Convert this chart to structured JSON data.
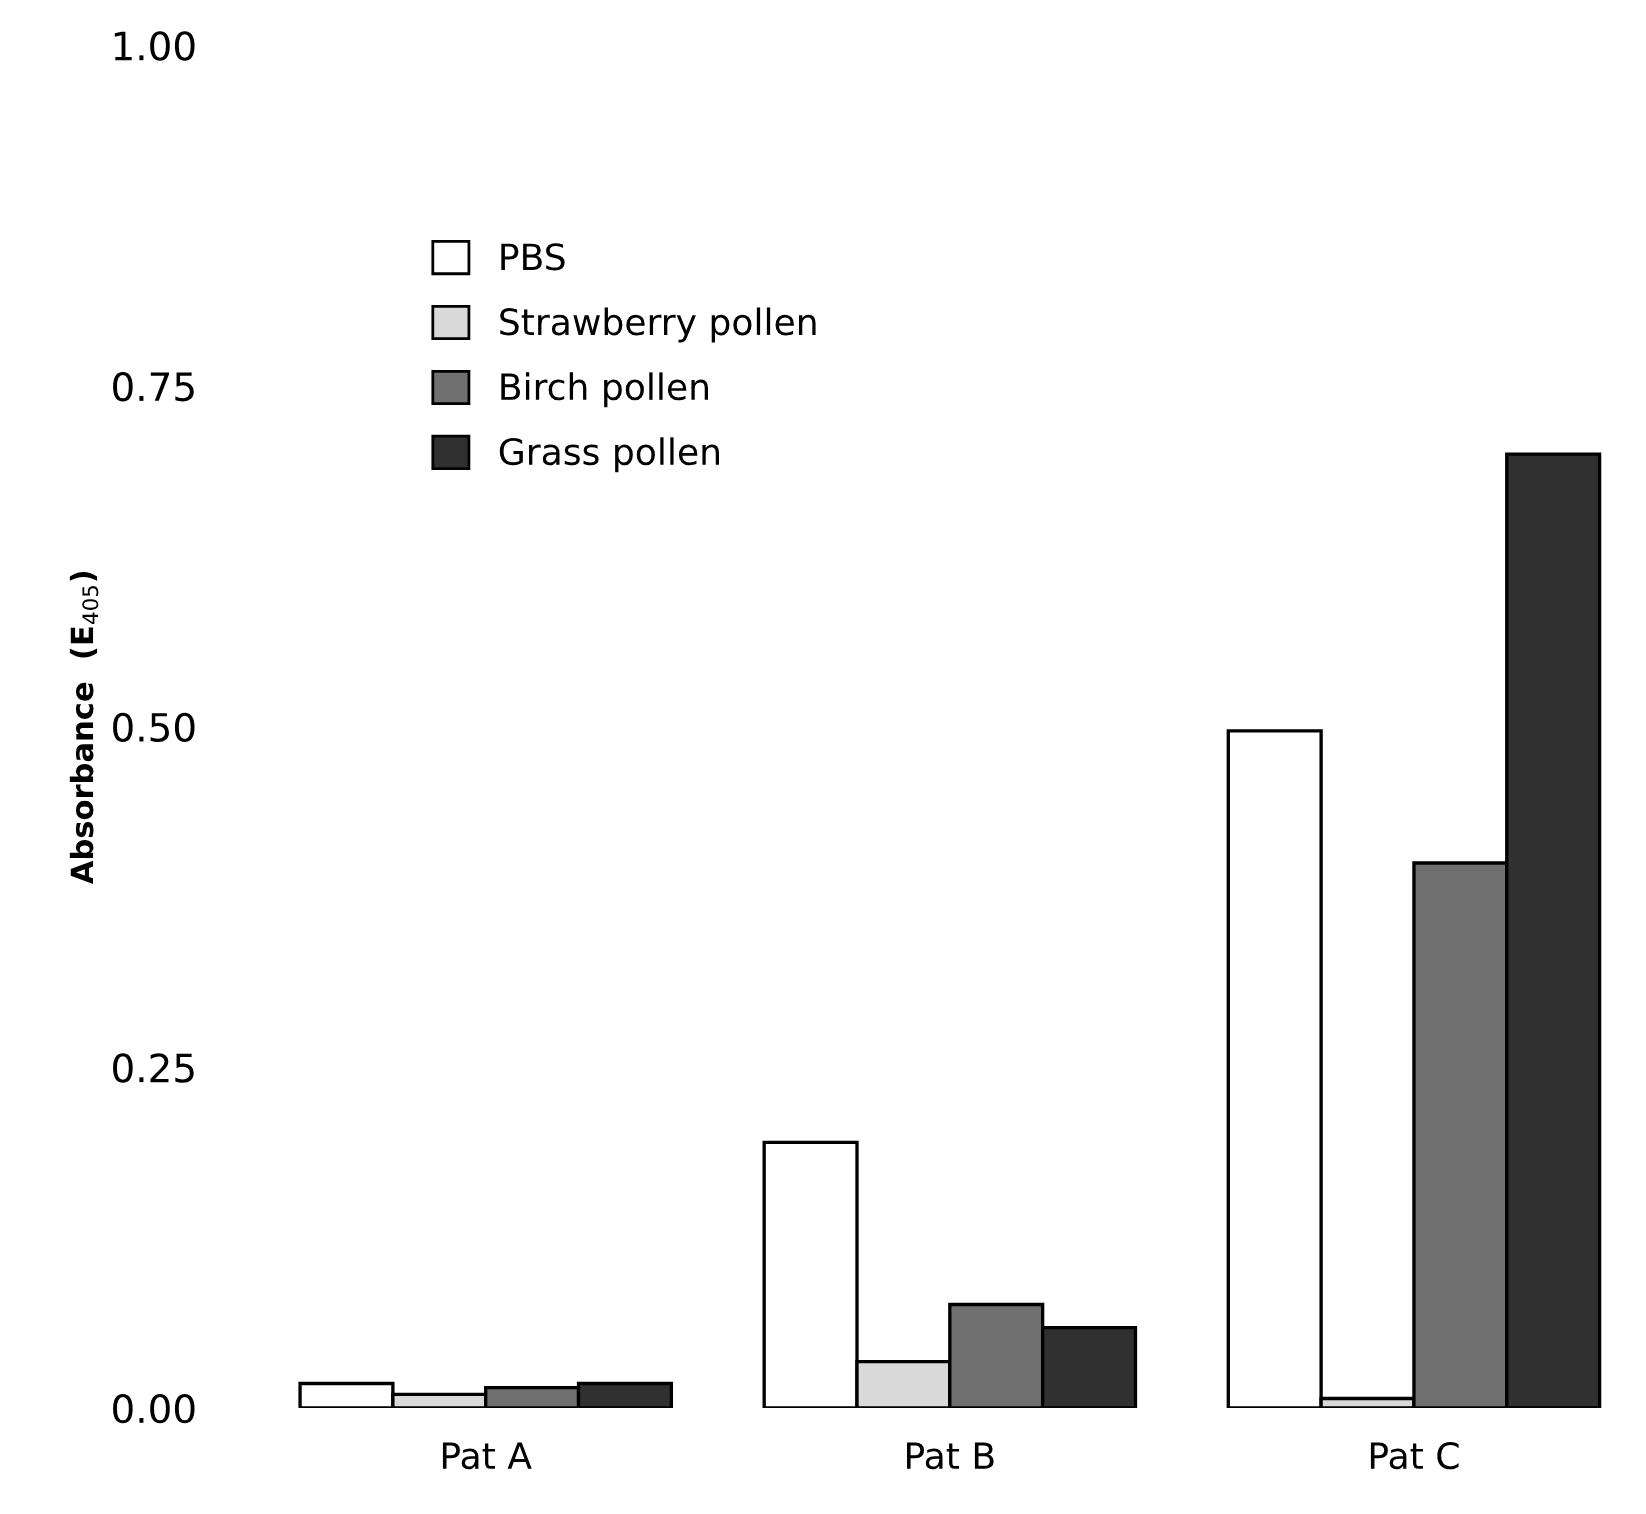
{
  "chart_data": {
    "type": "bar",
    "ylabel": "Absorbance  (E$_{405}$)",
    "categories": [
      "Pat A",
      "Pat B",
      "Pat C"
    ],
    "series": [
      {
        "name": "PBS",
        "color": "#ffffff",
        "values": [
          0.018,
          0.195,
          0.497
        ]
      },
      {
        "name": "Strawberry pollen",
        "color": "#d9d9d9",
        "values": [
          0.01,
          0.034,
          0.007
        ]
      },
      {
        "name": "Birch pollen",
        "color": "#707070",
        "values": [
          0.015,
          0.076,
          0.4
        ]
      },
      {
        "name": "Grass pollen",
        "color": "#303030",
        "values": [
          0.018,
          0.059,
          0.7
        ]
      }
    ],
    "ylim": [
      0,
      1
    ],
    "yticks": [
      {
        "value": 0,
        "label": "0.00"
      },
      {
        "value": 0.25,
        "label": "0.25"
      },
      {
        "value": 0.5,
        "label": "0.50"
      },
      {
        "value": 0.75,
        "label": "0.75"
      },
      {
        "value": 1,
        "label": "1.00"
      }
    ],
    "grid": false,
    "legend": "top left"
  }
}
